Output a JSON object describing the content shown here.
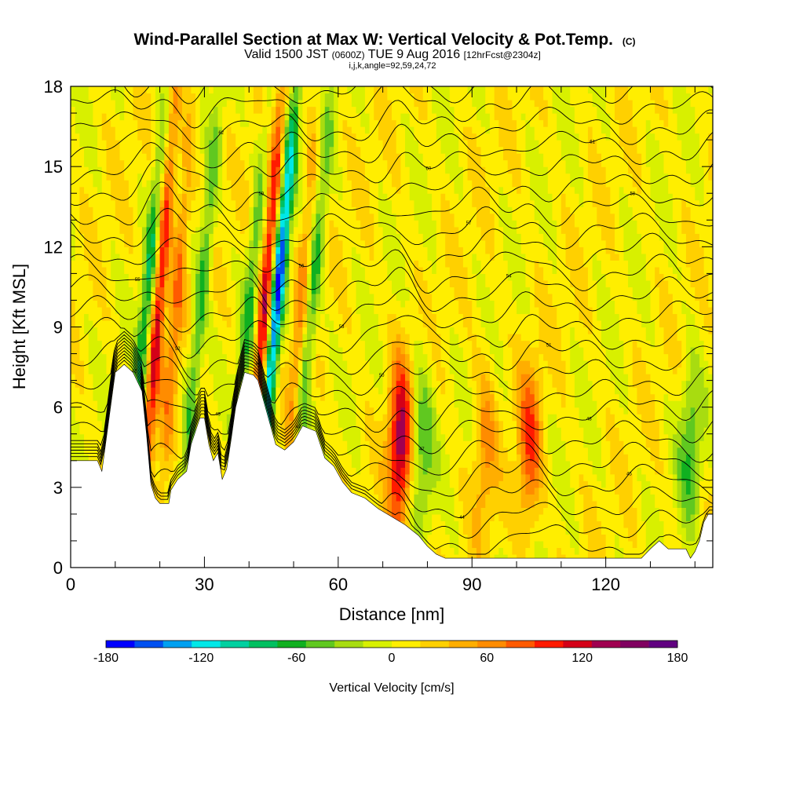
{
  "header": {
    "title_main": "Wind-Parallel Section at Max W: Vertical Velocity & Pot.Temp.",
    "title_mark": "(C)",
    "subtitle_a": "Valid 1500 JST",
    "subtitle_b": "(0600Z)",
    "subtitle_c": "TUE 9 Aug 2016",
    "subtitle_d": "[12hrFcst@2304z]",
    "subtitle_line2": "i,j,k,angle=92,59,24,72"
  },
  "chart_data": {
    "type": "heatmap",
    "title": "Wind-Parallel Section at Max W: Vertical Velocity & Pot.Temp.",
    "xlabel": "Distance [nm]",
    "ylabel": "Height [Kft MSL]",
    "xlim": [
      0,
      144
    ],
    "ylim": [
      0,
      18
    ],
    "x_ticks": [
      0,
      30,
      60,
      90,
      120
    ],
    "x_tick_labels": [
      "0",
      "30",
      "60",
      "90",
      "120"
    ],
    "y_ticks": [
      0,
      3,
      6,
      9,
      12,
      15,
      18
    ],
    "y_tick_labels": [
      "0",
      "3",
      "6",
      "9",
      "12",
      "15",
      "18"
    ],
    "colorbar": {
      "label": "Vertical Velocity [cm/s]",
      "range": [
        -180,
        180
      ],
      "tick_values": [
        -180,
        -120,
        -60,
        0,
        60,
        120,
        180
      ],
      "tick_labels": [
        "-180",
        "-120",
        "-60",
        "0",
        "60",
        "120",
        "180"
      ],
      "colors": [
        "#0000ff",
        "#0050f0",
        "#00a0f0",
        "#00e8e8",
        "#00d0a0",
        "#00c060",
        "#10b020",
        "#60c820",
        "#a8dc10",
        "#d8f000",
        "#ffee00",
        "#ffd000",
        "#ffae00",
        "#ff8c00",
        "#ff5a00",
        "#ff1a00",
        "#d40018",
        "#a00050",
        "#800060",
        "#600080"
      ]
    },
    "updrafts": [
      {
        "x": 18,
        "peak_cm_s": 110
      },
      {
        "x": 22,
        "peak_cm_s": 60
      },
      {
        "x": 42,
        "peak_cm_s": 130
      },
      {
        "x": 50,
        "peak_cm_s": 50
      },
      {
        "x": 74,
        "peak_cm_s": 130
      },
      {
        "x": 103,
        "peak_cm_s": 80
      },
      {
        "x": 93,
        "peak_cm_s": 50
      }
    ],
    "downdrafts": [
      {
        "x": 15,
        "peak_cm_s": -80
      },
      {
        "x": 27,
        "peak_cm_s": -70
      },
      {
        "x": 38,
        "peak_cm_s": -60
      },
      {
        "x": 44,
        "peak_cm_s": -170
      },
      {
        "x": 52,
        "peak_cm_s": -70
      },
      {
        "x": 79,
        "peak_cm_s": -60
      },
      {
        "x": 139,
        "peak_cm_s": -60
      }
    ],
    "terrain_kft": [
      [
        0,
        4.0
      ],
      [
        6,
        4.0
      ],
      [
        7,
        3.6
      ],
      [
        10,
        7.3
      ],
      [
        12,
        7.6
      ],
      [
        14,
        7.3
      ],
      [
        16,
        6.6
      ],
      [
        17,
        5.0
      ],
      [
        18,
        3.1
      ],
      [
        19,
        2.6
      ],
      [
        20,
        2.4
      ],
      [
        22,
        2.4
      ],
      [
        22.5,
        2.9
      ],
      [
        24,
        3.3
      ],
      [
        26,
        3.6
      ],
      [
        27,
        4.6
      ],
      [
        29,
        5.6
      ],
      [
        30,
        5.6
      ],
      [
        31,
        4.6
      ],
      [
        32,
        4.0
      ],
      [
        33,
        4.3
      ],
      [
        34,
        3.3
      ],
      [
        35,
        3.7
      ],
      [
        36,
        4.8
      ],
      [
        37,
        6.0
      ],
      [
        39,
        7.3
      ],
      [
        41,
        7.2
      ],
      [
        42,
        7.0
      ],
      [
        45,
        5.2
      ],
      [
        46,
        4.6
      ],
      [
        48,
        4.4
      ],
      [
        50,
        4.7
      ],
      [
        52,
        5.3
      ],
      [
        55,
        5.1
      ],
      [
        57,
        4.1
      ],
      [
        59,
        3.8
      ],
      [
        61,
        3.2
      ],
      [
        63,
        2.8
      ],
      [
        66,
        2.6
      ],
      [
        69,
        2.2
      ],
      [
        72,
        1.9
      ],
      [
        75,
        1.6
      ],
      [
        78,
        1.2
      ],
      [
        80,
        0.8
      ],
      [
        82,
        0.5
      ],
      [
        84,
        0.35
      ],
      [
        92,
        0.35
      ],
      [
        128,
        0.35
      ],
      [
        130,
        0.7
      ],
      [
        132,
        1.0
      ],
      [
        134,
        0.7
      ],
      [
        138,
        0.7
      ],
      [
        139,
        0.35
      ],
      [
        140,
        0.6
      ],
      [
        141,
        1.0
      ],
      [
        142,
        1.7
      ],
      [
        143,
        2.0
      ],
      [
        144,
        2.0
      ]
    ],
    "theta_contour_labels": [
      "42",
      "43",
      "44",
      "45",
      "46",
      "47",
      "48",
      "49",
      "50",
      "51",
      "52",
      "53",
      "54",
      "55",
      "56",
      "57",
      "58",
      "59",
      "60",
      "61",
      "62",
      "63",
      "64"
    ]
  }
}
